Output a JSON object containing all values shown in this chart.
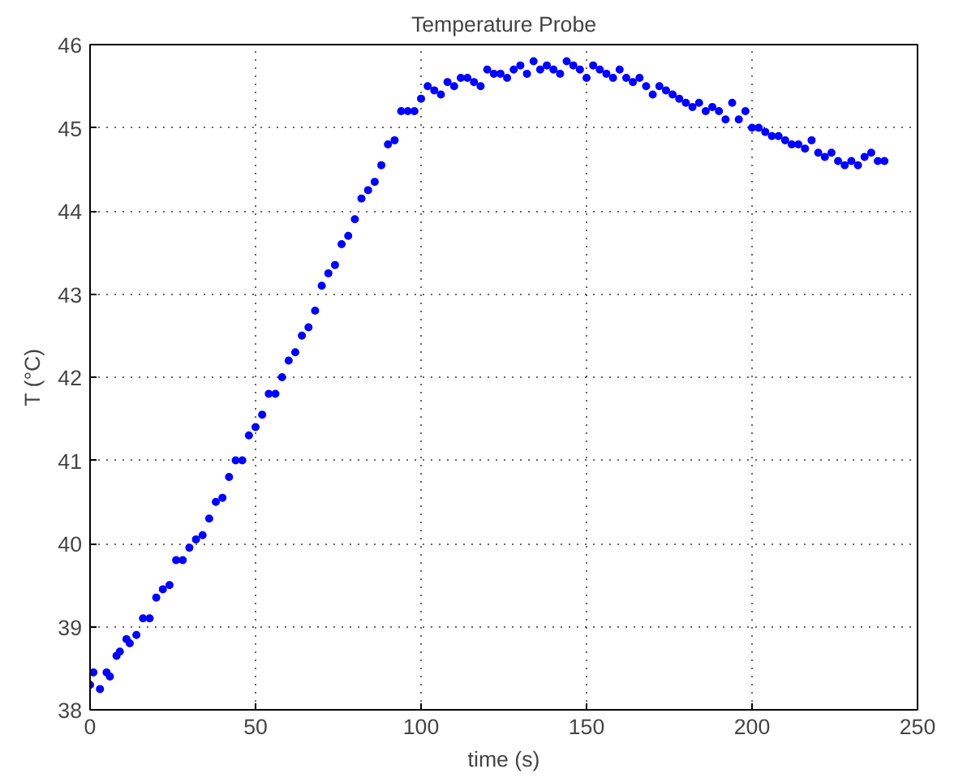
{
  "chart_data": {
    "type": "scatter",
    "title": "Temperature Probe",
    "xlabel": "time (s)",
    "ylabel": "T (°C)",
    "xlim": [
      0,
      250
    ],
    "xticks": [
      0,
      50,
      100,
      150,
      200,
      250
    ],
    "ylim": [
      38,
      46
    ],
    "yticks": [
      38,
      39,
      40,
      41,
      42,
      43,
      44,
      45,
      46
    ],
    "grid": true,
    "marker": "circle",
    "series": [
      {
        "color": "#0000ff",
        "x": [
          0,
          1,
          3,
          5,
          6,
          8,
          9,
          11,
          12,
          14,
          16,
          18,
          20,
          22,
          24,
          26,
          28,
          30,
          32,
          34,
          36,
          38,
          40,
          42,
          44,
          46,
          48,
          50,
          52,
          54,
          56,
          58,
          60,
          62,
          64,
          66,
          68,
          70,
          72,
          74,
          76,
          78,
          80,
          82,
          84,
          86,
          88,
          90,
          92,
          94,
          96,
          98,
          100,
          102,
          104,
          106,
          108,
          110,
          112,
          114,
          116,
          118,
          120,
          122,
          124,
          126,
          128,
          130,
          132,
          134,
          136,
          138,
          140,
          142,
          144,
          146,
          148,
          150,
          152,
          154,
          156,
          158,
          160,
          162,
          164,
          166,
          168,
          170,
          172,
          174,
          176,
          178,
          180,
          182,
          184,
          186,
          188,
          190,
          192,
          194,
          196,
          198,
          200,
          202,
          204,
          206,
          208,
          210,
          212,
          214,
          216,
          218,
          220,
          222,
          224,
          226,
          228,
          230,
          232,
          234,
          236,
          238,
          240
        ],
        "values": [
          38.3,
          38.45,
          38.25,
          38.45,
          38.4,
          38.65,
          38.7,
          38.85,
          38.8,
          38.9,
          39.1,
          39.1,
          39.35,
          39.45,
          39.5,
          39.8,
          39.8,
          39.95,
          40.05,
          40.1,
          40.3,
          40.5,
          40.55,
          40.8,
          41.0,
          41.0,
          41.3,
          41.4,
          41.55,
          41.8,
          41.8,
          42.0,
          42.2,
          42.3,
          42.5,
          42.6,
          42.8,
          43.1,
          43.25,
          43.35,
          43.6,
          43.7,
          43.9,
          44.15,
          44.25,
          44.35,
          44.55,
          44.8,
          44.85,
          45.2,
          45.2,
          45.2,
          45.35,
          45.5,
          45.45,
          45.4,
          45.55,
          45.5,
          45.6,
          45.6,
          45.55,
          45.5,
          45.7,
          45.65,
          45.65,
          45.6,
          45.7,
          45.75,
          45.65,
          45.8,
          45.7,
          45.75,
          45.7,
          45.65,
          45.8,
          45.75,
          45.7,
          45.6,
          45.75,
          45.7,
          45.65,
          45.6,
          45.7,
          45.6,
          45.55,
          45.6,
          45.5,
          45.4,
          45.5,
          45.45,
          45.4,
          45.35,
          45.3,
          45.25,
          45.3,
          45.2,
          45.25,
          45.2,
          45.1,
          45.3,
          45.1,
          45.2,
          45.0,
          45.0,
          44.95,
          44.9,
          44.9,
          44.85,
          44.8,
          44.8,
          44.75,
          44.85,
          44.7,
          44.65,
          44.7,
          44.6,
          44.55,
          44.6,
          44.55,
          44.65,
          44.7,
          44.6,
          44.6
        ]
      }
    ]
  }
}
